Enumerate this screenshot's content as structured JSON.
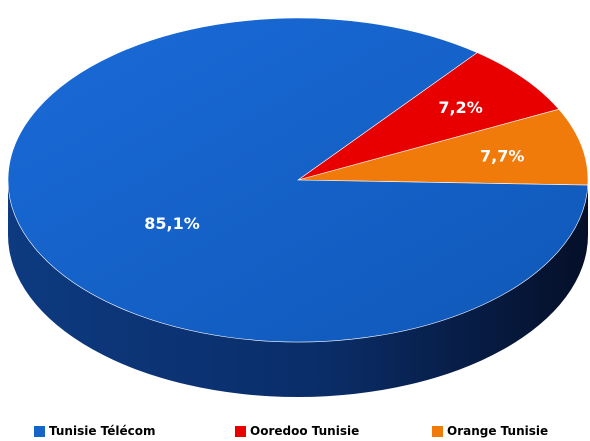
{
  "chart_data": {
    "type": "pie",
    "title": "",
    "slices": [
      {
        "label": "Tunisie Télécom",
        "value": 85.1,
        "display": "85,1%",
        "color": "#1565c8"
      },
      {
        "label": "Ooredoo Tunisie",
        "value": 7.2,
        "display": "7,2%",
        "color": "#e80000"
      },
      {
        "label": "Orange Tunisie",
        "value": 7.7,
        "display": "7,7%",
        "color": "#f07a0a"
      }
    ],
    "legend_placement": "bottom",
    "style": "3d"
  }
}
